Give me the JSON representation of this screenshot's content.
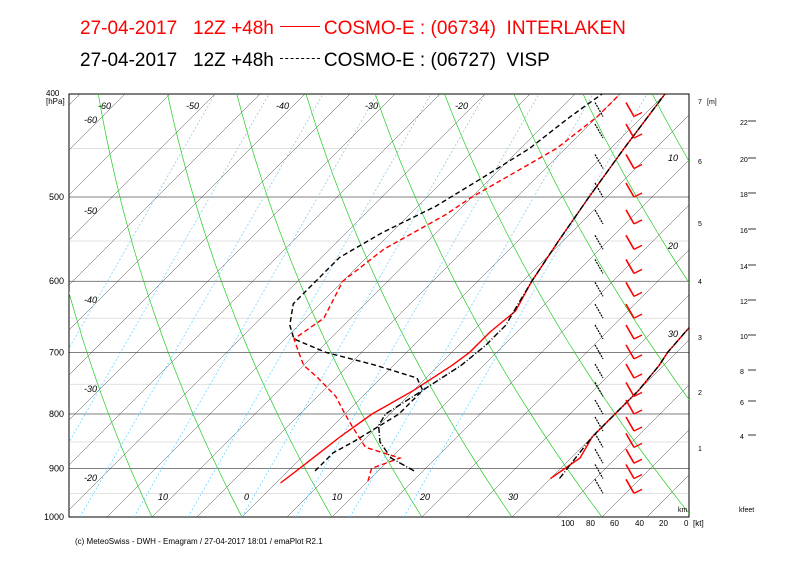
{
  "header": {
    "red": {
      "date": "27-04-2017",
      "run": "12Z +48h",
      "model": "COSMO-E : (06734)",
      "station": "INTERLAKEN",
      "line_style": "solid",
      "color": "#ff0000"
    },
    "black": {
      "date": "27-04-2017",
      "run": "12Z +48h",
      "model": "COSMO-E : (06727)",
      "station": "VISP",
      "line_style": "dash-dot",
      "color": "#000000"
    }
  },
  "footer": "(c) MeteoSwiss - DWH - Emagram / 27-04-2017  18:01 / emaPlot R2.1",
  "chart_data": {
    "type": "line",
    "diagram": "skew-T emagram",
    "y_unit": "[hPa]",
    "y_log_scale": true,
    "y_range": [
      1000,
      400
    ],
    "y_ticks": [
      400,
      500,
      600,
      700,
      800,
      900,
      1000
    ],
    "x_ticks_bottom": [
      "10",
      "0",
      "10",
      "20",
      "30"
    ],
    "x_range_temperature": [
      -20,
      35
    ],
    "isotherm_labels": [
      "-60",
      "-50",
      "-40",
      "-30",
      "-20",
      "10",
      "-60",
      "-50",
      "-40",
      "-30",
      "-20",
      "20",
      "30"
    ],
    "height_axis": {
      "unit": "[m]",
      "ticks": [
        "7",
        "6",
        "5",
        "4",
        "3",
        "2",
        "1"
      ],
      "km_label": "km"
    },
    "feet_axis": {
      "unit": "kfeet",
      "ticks": [
        "22",
        "20",
        "18",
        "16",
        "14",
        "12",
        "10",
        "8",
        "6",
        "4"
      ]
    },
    "wind_axis": {
      "unit": "[kt]",
      "ticks": [
        "100",
        "80",
        "60",
        "40",
        "20",
        "0"
      ]
    },
    "series": [
      {
        "name": "INTERLAKEN temperature",
        "color": "#ff0000",
        "style": "solid",
        "points": [
          [
            929,
            0.5
          ],
          [
            900,
            1
          ],
          [
            870,
            1.5
          ],
          [
            840,
            2
          ],
          [
            800,
            3
          ],
          [
            760,
            5
          ],
          [
            720,
            6.5
          ],
          [
            700,
            7
          ],
          [
            670,
            7
          ],
          [
            640,
            7.5
          ],
          [
            600,
            6
          ],
          [
            550,
            4.5
          ],
          [
            500,
            3
          ],
          [
            450,
            1.5
          ],
          [
            400,
            0
          ]
        ]
      },
      {
        "name": "INTERLAKEN dewpoint",
        "color": "#ff0000",
        "style": "dashed",
        "points": [
          [
            925,
            10
          ],
          [
            900,
            9
          ],
          [
            880,
            11
          ],
          [
            860,
            6
          ],
          [
            840,
            4
          ],
          [
            820,
            2
          ],
          [
            800,
            0
          ],
          [
            770,
            -3
          ],
          [
            740,
            -7
          ],
          [
            720,
            -10
          ],
          [
            700,
            -12
          ],
          [
            680,
            -14
          ],
          [
            650,
            -13
          ],
          [
            600,
            -15
          ],
          [
            560,
            -14
          ],
          [
            520,
            -11
          ],
          [
            500,
            -10
          ],
          [
            450,
            -6
          ],
          [
            420,
            -5
          ],
          [
            400,
            -5
          ]
        ]
      },
      {
        "name": "VISP temperature",
        "color": "#000000",
        "style": "dash-dot",
        "points": [
          [
            905,
            14
          ],
          [
            880,
            10
          ],
          [
            850,
            7
          ],
          [
            820,
            5
          ],
          [
            800,
            4.5
          ],
          [
            760,
            6
          ],
          [
            720,
            7.5
          ],
          [
            690,
            8
          ],
          [
            660,
            8
          ],
          [
            630,
            7
          ],
          [
            600,
            6
          ],
          [
            550,
            4.5
          ],
          [
            500,
            3
          ],
          [
            450,
            1.5
          ],
          [
            400,
            0
          ]
        ]
      },
      {
        "name": "VISP dewpoint",
        "color": "#000000",
        "style": "dashed",
        "points": [
          [
            905,
            3
          ],
          [
            870,
            3
          ],
          [
            850,
            4
          ],
          [
            800,
            6
          ],
          [
            760,
            6
          ],
          [
            740,
            4
          ],
          [
            720,
            -2
          ],
          [
            700,
            -9
          ],
          [
            680,
            -14
          ],
          [
            660,
            -16
          ],
          [
            630,
            -18
          ],
          [
            600,
            -18
          ],
          [
            570,
            -18
          ],
          [
            540,
            -16
          ],
          [
            510,
            -13
          ],
          [
            480,
            -11
          ],
          [
            450,
            -9
          ],
          [
            420,
            -8
          ],
          [
            400,
            -7
          ]
        ]
      },
      {
        "name": "Trace A",
        "color": "#ff0000",
        "style": "solid",
        "points": [
          [
            920,
            30
          ],
          [
            880,
            31
          ],
          [
            840,
            30
          ],
          [
            800,
            30
          ],
          [
            760,
            30
          ],
          [
            720,
            29.5
          ],
          [
            700,
            29
          ],
          [
            650,
            28.5
          ],
          [
            600,
            27
          ],
          [
            550,
            26
          ],
          [
            500,
            24
          ],
          [
            450,
            22
          ],
          [
            400,
            20
          ]
        ]
      },
      {
        "name": "Trace B",
        "color": "#000000",
        "style": "dash-dot",
        "points": [
          [
            920,
            31
          ],
          [
            880,
            30.5
          ],
          [
            840,
            30
          ],
          [
            800,
            30
          ],
          [
            760,
            30
          ],
          [
            720,
            29.5
          ],
          [
            700,
            29
          ],
          [
            650,
            28.5
          ],
          [
            600,
            27
          ],
          [
            550,
            26
          ],
          [
            500,
            24
          ],
          [
            450,
            22
          ],
          [
            400,
            20
          ]
        ]
      }
    ],
    "wind_barbs": {
      "color_red": "#ff0000",
      "color_black": "#000000",
      "levels_hpa": [
        420,
        440,
        470,
        500,
        530,
        560,
        590,
        620,
        650,
        680,
        710,
        740,
        770,
        800,
        830,
        860,
        890,
        920,
        950
      ]
    }
  }
}
